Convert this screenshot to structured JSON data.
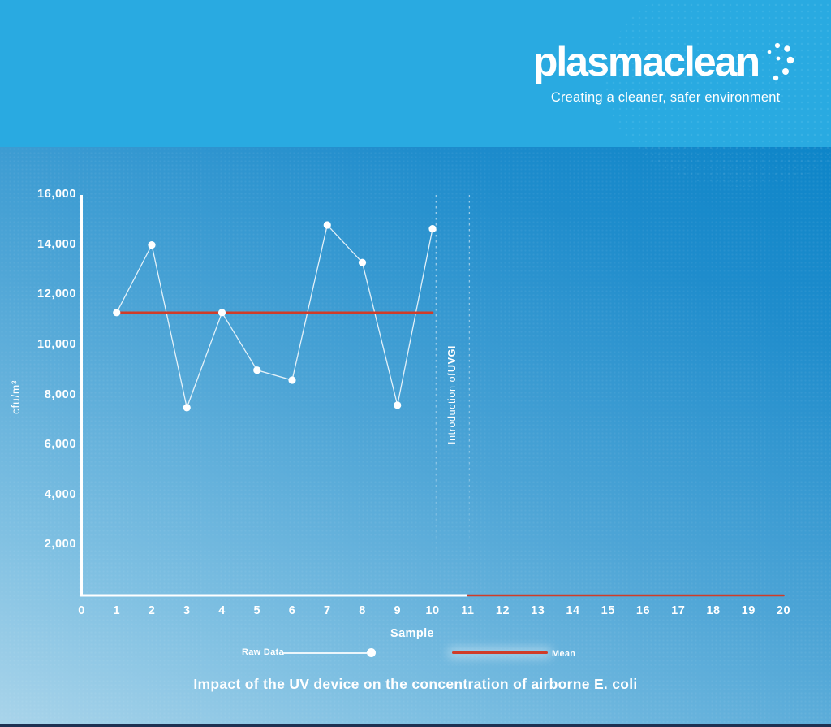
{
  "header": {
    "brand": "plasmaclean",
    "tagline": "Creating a cleaner, safer environment"
  },
  "colors": {
    "header_bg": "#29aae1",
    "accent_red": "#d03c28",
    "raw_line": "#ffffff"
  },
  "chart_data": {
    "type": "line",
    "title": "Impact of the UV device on the concentration of airborne E. coli",
    "xlabel": "Sample",
    "ylabel": "cfu/m³",
    "xlim": [
      0,
      20
    ],
    "ylim": [
      0,
      16000
    ],
    "grid": false,
    "legend_position": "bottom",
    "x_ticks": [
      0,
      1,
      2,
      3,
      4,
      5,
      6,
      7,
      8,
      9,
      10,
      11,
      12,
      13,
      14,
      15,
      16,
      17,
      18,
      19,
      20
    ],
    "y_ticks": [
      {
        "value": 2000,
        "label": "2,000"
      },
      {
        "value": 4000,
        "label": "4,000"
      },
      {
        "value": 6000,
        "label": "6,000"
      },
      {
        "value": 8000,
        "label": "8,000"
      },
      {
        "value": 10000,
        "label": "10,000"
      },
      {
        "value": 12000,
        "label": "12,000"
      },
      {
        "value": 14000,
        "label": "14,000"
      },
      {
        "value": 16000,
        "label": "16,000"
      }
    ],
    "series": [
      {
        "name": "Raw Data",
        "type": "line+markers",
        "color": "#ffffff",
        "x": [
          1,
          2,
          3,
          4,
          5,
          6,
          7,
          8,
          9,
          10
        ],
        "values": [
          11300,
          14000,
          7500,
          11300,
          9000,
          8600,
          14800,
          13300,
          7600,
          14650
        ]
      },
      {
        "name": "Mean",
        "type": "segments",
        "color": "#d03c28",
        "segments": [
          {
            "x1": 1,
            "x2": 10,
            "value": 11300
          },
          {
            "x1": 11,
            "x2": 20,
            "value": 0
          }
        ]
      }
    ],
    "annotation": {
      "prefix": "Introduction of ",
      "bold": "UVGI",
      "lines_x": [
        10.1,
        11.05
      ]
    },
    "legend": {
      "raw": "Raw Data",
      "mean": "Mean"
    }
  }
}
